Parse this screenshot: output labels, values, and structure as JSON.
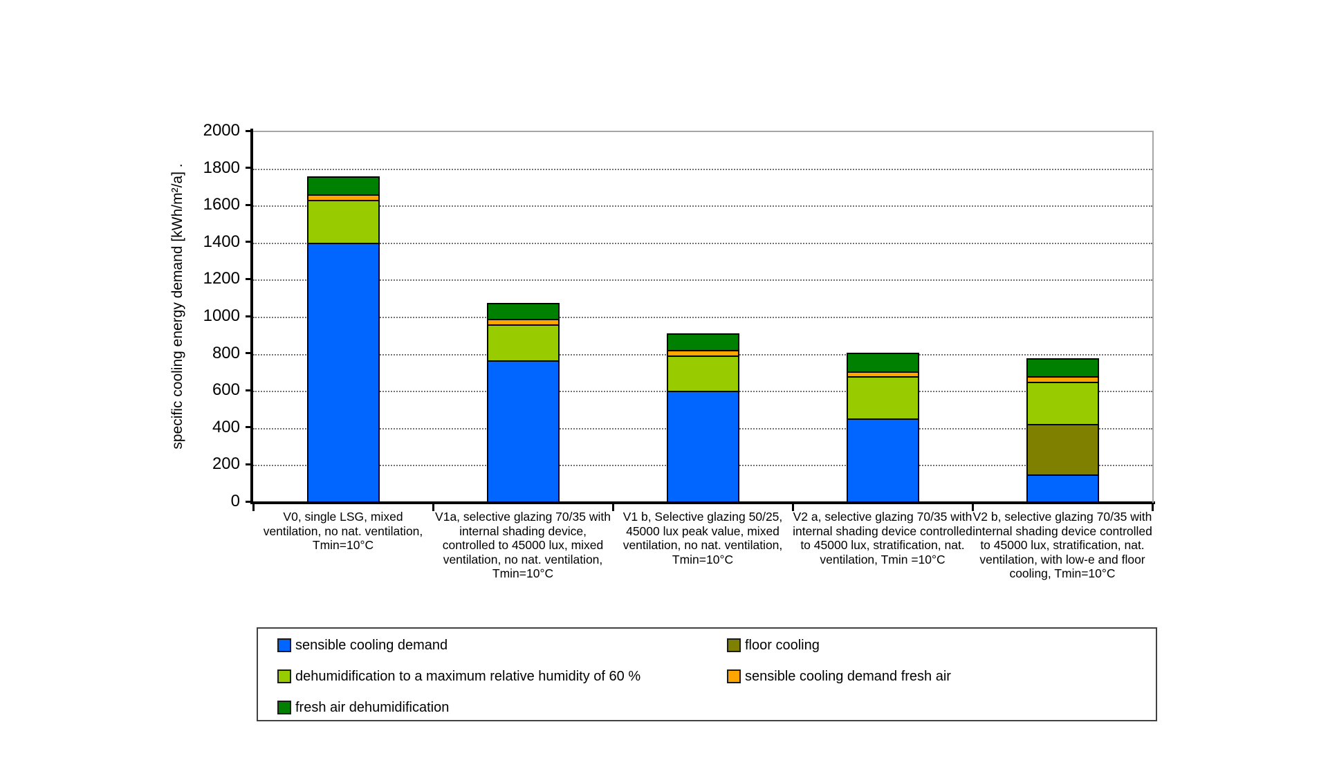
{
  "chart_data": {
    "type": "bar",
    "stacked": true,
    "title": "",
    "xlabel": "",
    "ylabel": "specific cooling energy demand [kWh/m²/a] .",
    "ylim": [
      0,
      2000
    ],
    "ytick_step": 200,
    "yticks": [
      0,
      200,
      400,
      600,
      800,
      1000,
      1200,
      1400,
      1600,
      1800,
      2000
    ],
    "grid": "horizontal-dotted",
    "legend_position": "bottom-box-two-columns",
    "categories": [
      "V0, single LSG, mixed ventilation, no nat. ventilation, Tmin=10°C",
      "V1a, selective glazing 70/35 with internal shading device, controlled to 45000 lux, mixed ventilation, no nat. ventilation, Tmin=10°C",
      "V1 b, Selective glazing 50/25, 45000 lux peak value, mixed ventilation, no nat. ventilation, Tmin=10°C",
      "V2 a, selective glazing 70/35 with internal shading device controlled to 45000 lux, stratification, nat. ventilation, Tmin =10°C",
      "V2 b, selective glazing 70/35 with internal shading device controlled to 45000 lux, stratification, nat. ventilation, with low-e and floor cooling, Tmin=10°C"
    ],
    "series": [
      {
        "name": "sensible cooling demand",
        "color": "#0066FF",
        "values": [
          1400,
          765,
          600,
          450,
          150
        ]
      },
      {
        "name": "floor cooling",
        "color": "#808000",
        "values": [
          0,
          0,
          0,
          0,
          270
        ]
      },
      {
        "name": "dehumidification to a maximum relative humidity of 60 %",
        "color": "#99CC00",
        "values": [
          230,
          195,
          190,
          230,
          230
        ]
      },
      {
        "name": "sensible cooling demand fresh air",
        "color": "#FFA500",
        "values": [
          30,
          30,
          30,
          25,
          30
        ]
      },
      {
        "name": "fresh air dehumidification",
        "color": "#008000",
        "values": [
          100,
          90,
          95,
          105,
          100
        ]
      }
    ],
    "bar_totals": [
      1760,
      1080,
      915,
      810,
      780
    ]
  },
  "legend": {
    "column1_series_indexes": [
      0,
      2,
      4
    ],
    "column2_series_indexes": [
      1,
      3
    ]
  },
  "colors": {
    "axis": "#000000",
    "plot_border": "#A6A6A6",
    "gridline": "#707070",
    "background": "#FFFFFF"
  }
}
